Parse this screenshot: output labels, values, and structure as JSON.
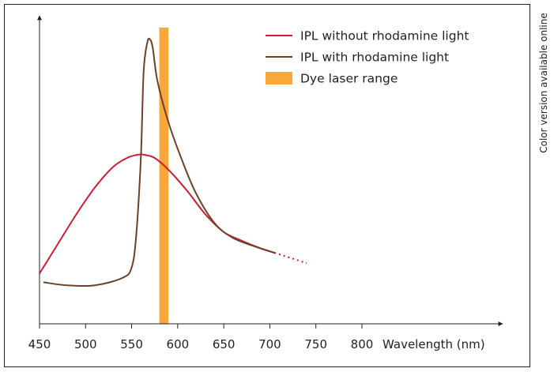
{
  "side_note": "Color version available online",
  "chart_data": {
    "type": "line",
    "title": "",
    "xlabel": "Wavelength (nm)",
    "ylabel": "",
    "xlim": [
      450,
      800
    ],
    "x_ticks": [
      450,
      500,
      550,
      600,
      650,
      700,
      750,
      800
    ],
    "x_tick_labels": [
      "450",
      "500",
      "550",
      "600",
      "650",
      "700",
      "750",
      "800"
    ],
    "y_ticks": [],
    "ylim": [
      0,
      1
    ],
    "grid": false,
    "legend": {
      "position": "top-right",
      "entries": [
        {
          "label": "IPL without rhodamine light",
          "color": "#c62035",
          "kind": "line"
        },
        {
          "label": "IPL with rhodamine light",
          "color": "#6b4227",
          "kind": "line"
        },
        {
          "label": "Dye laser range",
          "color": "#f8a83b",
          "kind": "band"
        }
      ]
    },
    "series": [
      {
        "name": "IPL without rhodamine light",
        "color": "#c62035",
        "x": [
          450,
          470,
          490,
          510,
          530,
          545,
          555,
          560,
          565,
          575,
          590,
          610,
          630,
          650,
          670,
          690,
          705
        ],
        "y": [
          0.17,
          0.27,
          0.37,
          0.46,
          0.53,
          0.56,
          0.57,
          0.572,
          0.57,
          0.56,
          0.52,
          0.45,
          0.37,
          0.31,
          0.28,
          0.255,
          0.24
        ],
        "dashed_x": [
          705,
          740
        ],
        "dashed_y": [
          0.24,
          0.205
        ]
      },
      {
        "name": "IPL with rhodamine light",
        "color": "#6b4227",
        "x": [
          455,
          480,
          510,
          540,
          550,
          555,
          560,
          563,
          567,
          570,
          573,
          578,
          590,
          605,
          620,
          640,
          660,
          685,
          705
        ],
        "y": [
          0.14,
          0.13,
          0.13,
          0.155,
          0.19,
          0.3,
          0.56,
          0.85,
          0.95,
          0.96,
          0.93,
          0.82,
          0.68,
          0.55,
          0.44,
          0.34,
          0.29,
          0.26,
          0.24
        ]
      }
    ],
    "bands": [
      {
        "name": "Dye laser range",
        "color": "#f8a83b",
        "x_range": [
          580,
          590
        ]
      }
    ]
  }
}
